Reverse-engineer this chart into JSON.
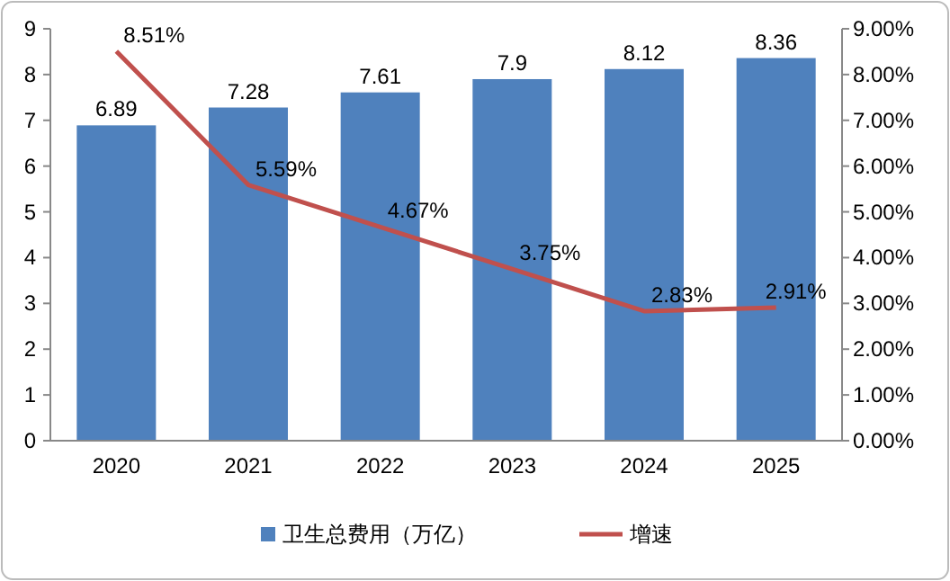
{
  "chart_data": {
    "type": "bar",
    "categories": [
      "2020",
      "2021",
      "2022",
      "2023",
      "2024",
      "2025"
    ],
    "series": [
      {
        "name": "卫生总费用（万亿）",
        "color": "#4f81bd",
        "values": [
          6.89,
          7.28,
          7.61,
          7.9,
          8.12,
          8.36
        ],
        "value_labels": [
          "6.89",
          "7.28",
          "7.61",
          "7.9",
          "8.12",
          "8.36"
        ]
      },
      {
        "name": "增速",
        "type": "line",
        "axis": "y2",
        "color": "#c0504d",
        "values": [
          8.51,
          5.59,
          4.67,
          3.75,
          2.83,
          2.91
        ],
        "value_labels": [
          "8.51%",
          "5.59%",
          "4.67%",
          "3.75%",
          "2.83%",
          "2.91%"
        ]
      }
    ],
    "ylim": [
      0,
      9
    ],
    "yticks": [
      0,
      1,
      2,
      3,
      4,
      5,
      6,
      7,
      8,
      9
    ],
    "y2lim": [
      0,
      9
    ],
    "y2ticks": [
      {
        "value": 0,
        "label": "0.00%"
      },
      {
        "value": 1,
        "label": "1.00%"
      },
      {
        "value": 2,
        "label": "2.00%"
      },
      {
        "value": 3,
        "label": "3.00%"
      },
      {
        "value": 4,
        "label": "4.00%"
      },
      {
        "value": 5,
        "label": "5.00%"
      },
      {
        "value": 6,
        "label": "6.00%"
      },
      {
        "value": 7,
        "label": "7.00%"
      },
      {
        "value": 8,
        "label": "8.00%"
      },
      {
        "value": 9,
        "label": "9.00%"
      }
    ],
    "legend": "bottom",
    "grid": false,
    "marker": "none",
    "line_style": "solid"
  }
}
